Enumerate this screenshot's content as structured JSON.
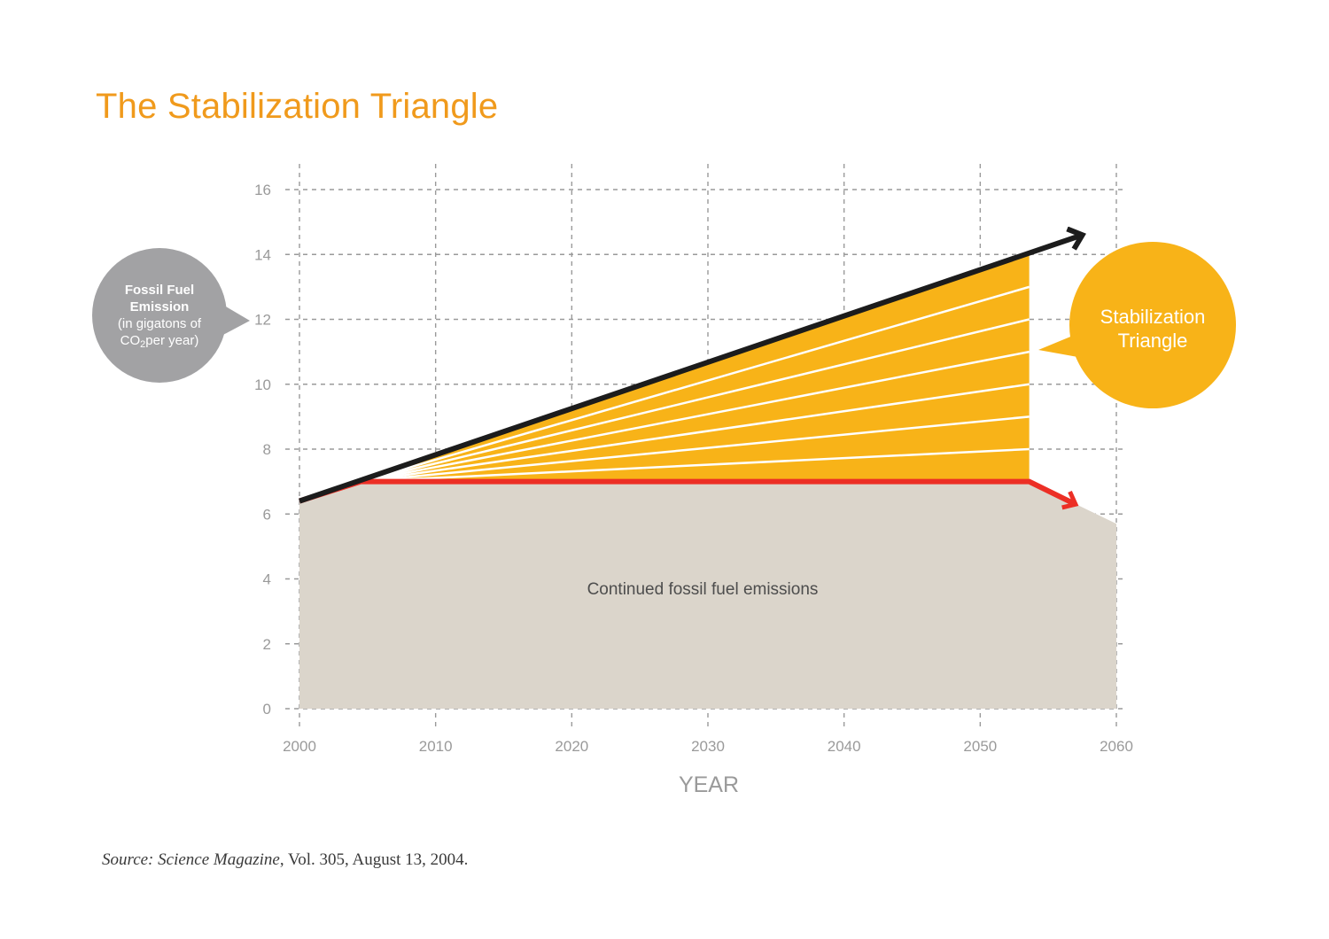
{
  "title": "The Stabilization Triangle",
  "y_label": {
    "line1": "Fossil Fuel",
    "line2": "Emission",
    "line3": "(in gigatons of",
    "line4_pre": "CO",
    "line4_sub": "2",
    "line4_post": "per year)"
  },
  "triangle_label": {
    "line1": "Stabilization",
    "line2": "Triangle"
  },
  "area_label": "Continued fossil fuel emissions",
  "source": {
    "prefix": "Source: Science Magazine",
    "rest": ", Vol. 305, August 13, 2004."
  },
  "colors": {
    "title": "#f09a1c",
    "triangle": "#f8b318",
    "bau_area": "#dbd5cb",
    "bau_line": "#1c1c1c",
    "flat_path": "#ec2f25",
    "y_bubble": "#a2a2a4",
    "grid": "#9a9a9a"
  },
  "chart_data": {
    "type": "area",
    "xlabel": "YEAR",
    "ylabel": "",
    "xlim": [
      2000,
      2060
    ],
    "ylim": [
      0,
      16
    ],
    "x_ticks": [
      2000,
      2010,
      2020,
      2030,
      2040,
      2050,
      2060
    ],
    "y_ticks": [
      0,
      2,
      4,
      6,
      8,
      10,
      12,
      14,
      16
    ],
    "grid": true,
    "series": [
      {
        "kind": "line-arrow",
        "role": "business-as-usual",
        "x": [
          2000,
          2057.5
        ],
        "y": [
          6.4,
          14.6
        ]
      },
      {
        "kind": "line-arrow",
        "role": "flat-path",
        "x": [
          2000,
          2004.5,
          2053.6,
          2057
        ],
        "y": [
          6.4,
          7.0,
          7.0,
          6.3
        ]
      },
      {
        "kind": "area",
        "role": "continued-emissions",
        "x": [
          2000,
          2004.5,
          2053.6,
          2060
        ],
        "y": [
          6.4,
          7.0,
          7.0,
          5.7
        ]
      },
      {
        "kind": "area",
        "role": "stabilization-triangle",
        "x": [
          2004.5,
          2053.6,
          2053.6
        ],
        "y": [
          7.0,
          14.0,
          7.0
        ]
      }
    ],
    "wedge_boundaries_at_2053_6": [
      8.0,
      9.0,
      10.0,
      11.0,
      12.0,
      13.0
    ]
  }
}
